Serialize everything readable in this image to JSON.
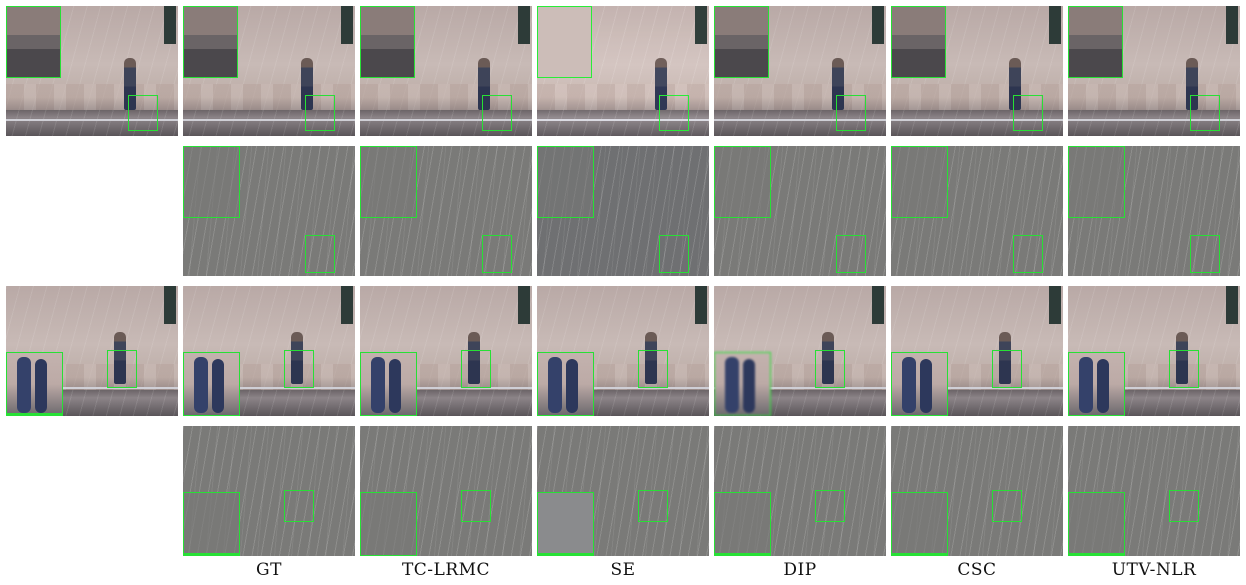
{
  "columns": [
    {
      "label": ""
    },
    {
      "label": "GT"
    },
    {
      "label": "TC-LRMC"
    },
    {
      "label": "SE"
    },
    {
      "label": "DIP"
    },
    {
      "label": "CSC"
    },
    {
      "label": "UTV-NLR"
    }
  ],
  "colors": {
    "zoom_box": "#27e035",
    "background": "#ffffff"
  }
}
